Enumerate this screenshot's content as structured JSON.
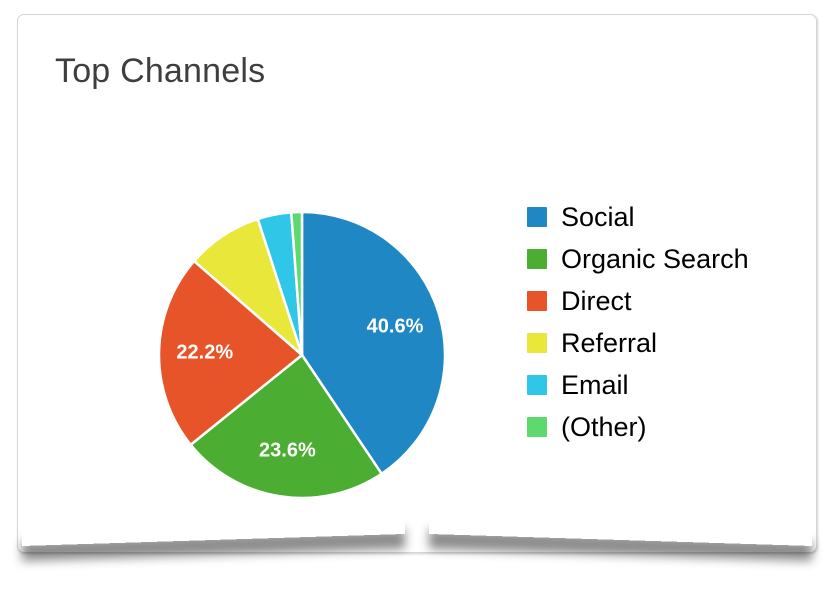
{
  "widget": {
    "title": "Top Channels"
  },
  "chart_data": {
    "type": "pie",
    "title": "Top Channels",
    "start_angle_deg": 0,
    "direction": "clockwise",
    "legend_position": "right",
    "slices": [
      {
        "name": "Social",
        "pct": 40.6,
        "label": "40.6%",
        "color": "#1f87c3"
      },
      {
        "name": "Organic Search",
        "pct": 23.6,
        "label": "23.6%",
        "color": "#4bad31"
      },
      {
        "name": "Direct",
        "pct": 22.2,
        "label": "22.2%",
        "color": "#e8542a"
      },
      {
        "name": "Referral",
        "pct": 8.6,
        "label": "",
        "color": "#e9e83a"
      },
      {
        "name": "Email",
        "pct": 3.8,
        "label": "",
        "color": "#2fc6e8"
      },
      {
        "name": "(Other)",
        "pct": 1.2,
        "label": "",
        "color": "#5dd96e"
      }
    ]
  },
  "style": {
    "title_color": "#3e3e3e",
    "legend_text_color": "#000000",
    "slice_label_color": "#ffffff",
    "slice_stroke": "#ffffff",
    "card_bg": "#ffffff",
    "card_border": "#d6d6d6"
  }
}
